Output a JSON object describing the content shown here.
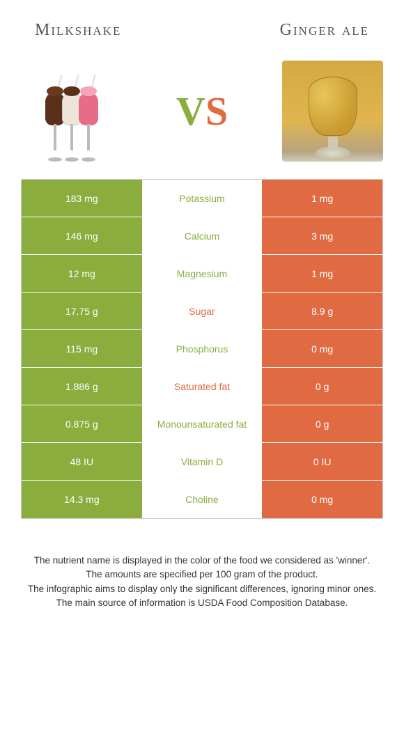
{
  "header": {
    "left_title": "Milkshake",
    "right_title": "Ginger ale"
  },
  "vs": {
    "v": "V",
    "s": "S"
  },
  "colors": {
    "left_bg": "#8aad3d",
    "right_bg": "#e06b42",
    "milkshake_choc": "#5a3018",
    "milkshake_choc_cream": "#6b3a1e",
    "milkshake_vanilla": "#ede6d8",
    "milkshake_vanilla_cream": "#5a3018",
    "milkshake_pink": "#e86b88",
    "milkshake_pink_cream": "#f4a6b8"
  },
  "rows": [
    {
      "left": "183 mg",
      "label": "Potassium",
      "right": "1 mg",
      "winner": "left"
    },
    {
      "left": "146 mg",
      "label": "Calcium",
      "right": "3 mg",
      "winner": "left"
    },
    {
      "left": "12 mg",
      "label": "Magnesium",
      "right": "1 mg",
      "winner": "left"
    },
    {
      "left": "17.75 g",
      "label": "Sugar",
      "right": "8.9 g",
      "winner": "right"
    },
    {
      "left": "115 mg",
      "label": "Phosphorus",
      "right": "0 mg",
      "winner": "left"
    },
    {
      "left": "1.886 g",
      "label": "Saturated fat",
      "right": "0 g",
      "winner": "right"
    },
    {
      "left": "0.875 g",
      "label": "Monounsaturated fat",
      "right": "0 g",
      "winner": "left"
    },
    {
      "left": "48 IU",
      "label": "Vitamin D",
      "right": "0 IU",
      "winner": "left"
    },
    {
      "left": "14.3 mg",
      "label": "Choline",
      "right": "0 mg",
      "winner": "left"
    }
  ],
  "footer": {
    "line1": "The nutrient name is displayed in the color of the food we considered as 'winner'.",
    "line2": "The amounts are specified per 100 gram of the product.",
    "line3": "The infographic aims to display only the significant differences, ignoring minor ones.",
    "line4": "The main source of information is USDA Food Composition Database."
  }
}
